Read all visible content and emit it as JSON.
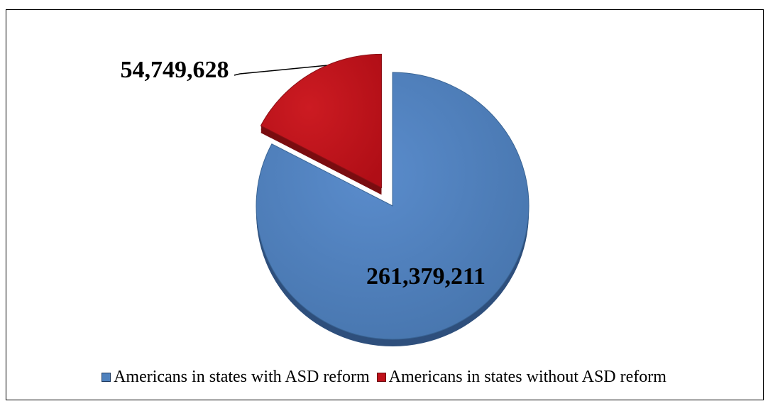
{
  "chart_data": {
    "type": "pie",
    "title": "",
    "categories": [
      "Americans in states with ASD reform",
      "Americans in states without ASD reform"
    ],
    "values": [
      261379211,
      54749628
    ],
    "data_labels": [
      "261,379,211",
      "54,749,628"
    ],
    "colors": [
      "#4f81bd",
      "#c0111b"
    ],
    "exploded": [
      false,
      true
    ],
    "style": "3d-tilted",
    "legend_position": "bottom"
  }
}
